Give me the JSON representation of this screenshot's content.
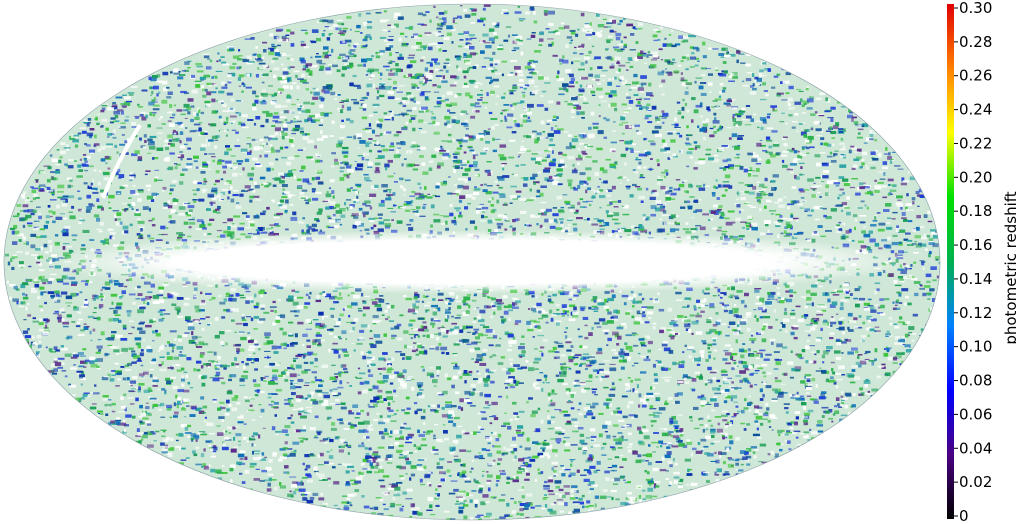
{
  "map": {
    "projection": "mollweide",
    "plane_band": "galactic",
    "background": "#ffffff"
  },
  "colorbar": {
    "title": "photometric redshift",
    "min": 0,
    "max": 0.3,
    "colormap": [
      "#000000",
      "#4b0082",
      "#0000ff",
      "#0080ff",
      "#00b050",
      "#00e000",
      "#ffff00",
      "#ff8000",
      "#e00000"
    ],
    "ticks": [
      "0",
      "0.02",
      "0.04",
      "0.06",
      "0.08",
      "0.10",
      "0.12",
      "0.14",
      "0.16",
      "0.18",
      "0.20",
      "0.22",
      "0.24",
      "0.26",
      "0.28",
      "0.30"
    ]
  }
}
